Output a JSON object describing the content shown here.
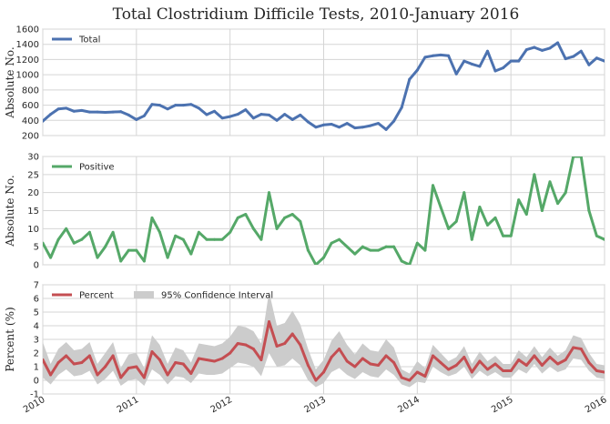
{
  "chart_data": {
    "type": "line",
    "title": "Total Clostridium Difficile Tests, 2010-January 2016",
    "x_tick_labels": [
      "2010",
      "2011",
      "2012",
      "2013",
      "2014",
      "2015",
      "2016"
    ],
    "xlim": [
      "2010-01",
      "2016-01"
    ],
    "grid": true,
    "panels": [
      {
        "ylabel": "Absolute No.",
        "ylim": [
          200,
          1600
        ],
        "yticks": [
          200,
          400,
          600,
          800,
          1000,
          1200,
          1400,
          1600
        ],
        "legend_position": "top-left",
        "series": [
          {
            "name": "Total",
            "color": "#4c72b0",
            "start": "2010-01",
            "values": [
              390,
              480,
              550,
              560,
              520,
              530,
              510,
              510,
              505,
              510,
              515,
              470,
              410,
              460,
              610,
              600,
              550,
              600,
              600,
              610,
              560,
              475,
              520,
              430,
              450,
              480,
              540,
              430,
              480,
              470,
              400,
              480,
              410,
              470,
              380,
              310,
              340,
              350,
              310,
              360,
              300,
              310,
              330,
              360,
              280,
              390,
              570,
              940,
              1060,
              1230,
              1250,
              1260,
              1250,
              1010,
              1180,
              1140,
              1110,
              1310,
              1050,
              1090,
              1180,
              1180,
              1330,
              1360,
              1320,
              1350,
              1420,
              1210,
              1240,
              1310,
              1130,
              1220,
              1180
            ]
          }
        ]
      },
      {
        "ylabel": "Absolute No.",
        "ylim": [
          0,
          30
        ],
        "yticks": [
          0,
          5,
          10,
          15,
          20,
          25,
          30
        ],
        "legend_position": "top-left",
        "series": [
          {
            "name": "Positive",
            "color": "#55a868",
            "start": "2010-01",
            "values": [
              6,
              2,
              7,
              10,
              6,
              7,
              9,
              2,
              5,
              9,
              1,
              4,
              4,
              1,
              13,
              9,
              2,
              8,
              7,
              3,
              9,
              7,
              7,
              7,
              9,
              13,
              14,
              10,
              7,
              20,
              10,
              13,
              14,
              12,
              4,
              0,
              2,
              6,
              7,
              5,
              3,
              5,
              4,
              4,
              5,
              5,
              1,
              0,
              6,
              4,
              22,
              16,
              10,
              12,
              20,
              7,
              16,
              11,
              13,
              8,
              8,
              18,
              14,
              25,
              15,
              23,
              17,
              20,
              30,
              30,
              15,
              8,
              7
            ]
          }
        ]
      },
      {
        "ylabel": "Percent (%)",
        "ylim": [
          -1,
          7
        ],
        "yticks": [
          -1,
          0,
          1,
          2,
          3,
          4,
          5,
          6,
          7
        ],
        "legend_position": "top-left",
        "series": [
          {
            "name": "Percent",
            "color": "#c44e52",
            "start": "2010-01",
            "values": [
              1.5,
              0.4,
              1.3,
              1.8,
              1.2,
              1.3,
              1.8,
              0.4,
              1.0,
              1.8,
              0.2,
              0.9,
              1.0,
              0.2,
              2.1,
              1.5,
              0.4,
              1.3,
              1.2,
              0.5,
              1.6,
              1.5,
              1.4,
              1.6,
              2.0,
              2.7,
              2.6,
              2.3,
              1.5,
              4.3,
              2.5,
              2.7,
              3.4,
              2.6,
              1.1,
              0.0,
              0.6,
              1.7,
              2.3,
              1.4,
              1.0,
              1.6,
              1.2,
              1.1,
              1.8,
              1.3,
              0.2,
              0.0,
              0.6,
              0.3,
              1.8,
              1.3,
              0.8,
              1.1,
              1.7,
              0.6,
              1.4,
              0.8,
              1.2,
              0.7,
              0.7,
              1.5,
              1.1,
              1.8,
              1.1,
              1.7,
              1.2,
              1.5,
              2.4,
              2.3,
              1.3,
              0.7,
              0.6
            ]
          }
        ],
        "band": {
          "name": "95% Confidence Interval",
          "color": "#cccccc",
          "start": "2010-01",
          "lower": [
            0.2,
            -0.3,
            0.4,
            0.8,
            0.3,
            0.4,
            0.7,
            -0.3,
            0.1,
            0.7,
            -0.4,
            0.0,
            0.1,
            -0.4,
            0.8,
            0.4,
            -0.3,
            0.3,
            0.2,
            -0.2,
            0.5,
            0.4,
            0.4,
            0.5,
            0.9,
            1.3,
            1.2,
            1.0,
            0.3,
            2.0,
            1.0,
            1.1,
            1.6,
            1.1,
            0.0,
            -0.5,
            -0.2,
            0.6,
            0.9,
            0.4,
            0.1,
            0.6,
            0.3,
            0.2,
            0.8,
            0.4,
            -0.3,
            -0.5,
            -0.1,
            -0.2,
            1.0,
            0.6,
            0.3,
            0.5,
            1.0,
            0.1,
            0.7,
            0.3,
            0.6,
            0.2,
            0.2,
            0.8,
            0.5,
            1.2,
            0.5,
            1.0,
            0.6,
            0.8,
            1.6,
            1.5,
            0.7,
            0.2,
            0.1
          ],
          "upper": [
            2.8,
            1.2,
            2.3,
            2.8,
            2.2,
            2.3,
            2.8,
            1.2,
            2.0,
            2.8,
            0.9,
            1.9,
            2.0,
            0.9,
            3.3,
            2.6,
            1.2,
            2.4,
            2.2,
            1.3,
            2.7,
            2.6,
            2.5,
            2.7,
            3.2,
            4.0,
            3.9,
            3.6,
            2.7,
            6.5,
            4.0,
            4.2,
            5.1,
            4.1,
            2.3,
            0.8,
            1.5,
            2.9,
            3.6,
            2.6,
            1.9,
            2.7,
            2.2,
            2.1,
            3.0,
            2.4,
            0.8,
            0.5,
            1.4,
            0.9,
            2.6,
            2.0,
            1.4,
            1.7,
            2.5,
            1.2,
            2.1,
            1.4,
            1.8,
            1.2,
            1.2,
            2.2,
            1.7,
            2.5,
            1.7,
            2.4,
            1.8,
            2.2,
            3.3,
            3.1,
            2.0,
            1.2,
            1.1
          ]
        }
      }
    ]
  }
}
